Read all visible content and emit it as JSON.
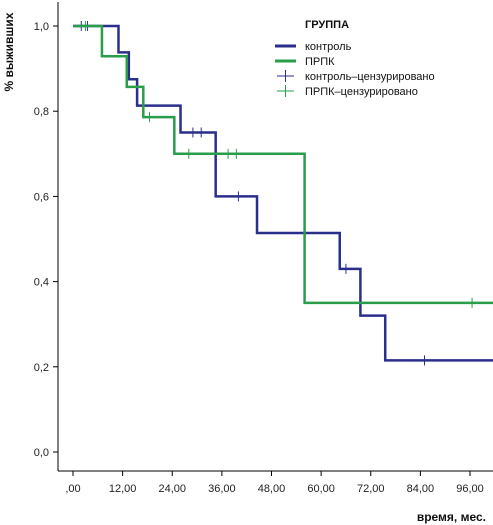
{
  "chart_data": {
    "type": "line",
    "subtype": "kaplan-meier-step",
    "xlabel": "время, мес.",
    "ylabel": "% выживших",
    "xlim": [
      0,
      102
    ],
    "ylim": [
      0,
      1.06
    ],
    "x_ticks": [
      0,
      12,
      24,
      36,
      48,
      60,
      72,
      84,
      96
    ],
    "x_tick_labels": [
      ",00",
      "12,00",
      "24,00",
      "36,00",
      "48,00",
      "60,00",
      "72,00",
      "84,00",
      "96,00"
    ],
    "y_ticks": [
      0,
      0.2,
      0.4,
      0.6,
      0.8,
      1.0
    ],
    "y_tick_labels": [
      "0,0",
      "0,2",
      "0,4",
      "0,6",
      "0,8",
      "1,0"
    ],
    "grid": false,
    "legend": {
      "title": "ГРУППА",
      "position": "top-right",
      "entries": [
        {
          "label": "контроль",
          "kind": "line",
          "color": "#2b2f8c"
        },
        {
          "label": "ПРПК",
          "kind": "line",
          "color": "#2a9d4a"
        },
        {
          "label": "контроль–цензурировано",
          "kind": "censor",
          "color": "#2b2f8c"
        },
        {
          "label": "ПРПК–цензурировано",
          "kind": "censor",
          "color": "#2a9d4a"
        }
      ]
    },
    "series": [
      {
        "name": "контроль",
        "color": "#2b2f8c",
        "steps": [
          [
            0,
            1.0
          ],
          [
            11,
            0.938
          ],
          [
            13.5,
            0.875
          ],
          [
            15.5,
            0.813
          ],
          [
            26,
            0.75
          ],
          [
            34.5,
            0.6
          ],
          [
            44.5,
            0.514
          ],
          [
            64.5,
            0.43
          ],
          [
            69.5,
            0.32
          ],
          [
            75.5,
            0.215
          ],
          [
            102,
            0.215
          ]
        ],
        "censored": [
          [
            2,
            1.0
          ],
          [
            3.5,
            1.0
          ],
          [
            29,
            0.75
          ],
          [
            31,
            0.75
          ],
          [
            40,
            0.6
          ],
          [
            66,
            0.43
          ],
          [
            85,
            0.215
          ]
        ]
      },
      {
        "name": "ПРПК",
        "color": "#2a9d4a",
        "steps": [
          [
            0,
            1.0
          ],
          [
            7,
            0.929
          ],
          [
            13,
            0.857
          ],
          [
            17,
            0.786
          ],
          [
            24.5,
            0.7
          ],
          [
            56,
            0.35
          ],
          [
            102,
            0.35
          ]
        ],
        "censored": [
          [
            3,
            1.0
          ],
          [
            18.5,
            0.786
          ],
          [
            28,
            0.7
          ],
          [
            37.5,
            0.7
          ],
          [
            39.5,
            0.7
          ],
          [
            96.5,
            0.35
          ]
        ]
      }
    ]
  }
}
